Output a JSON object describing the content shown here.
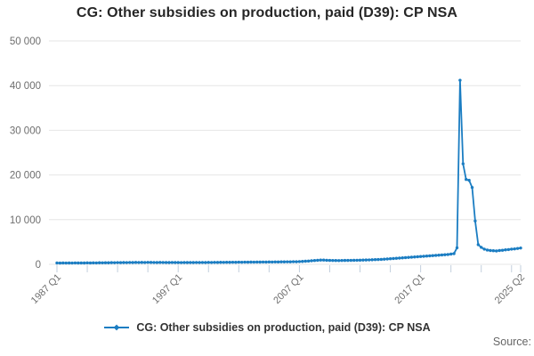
{
  "page": {
    "title": "CG: Other subsidies on production, paid (D39): CP NSA",
    "source_label": "Source:"
  },
  "legend": {
    "label": "CG: Other subsidies on production, paid (D39): CP NSA"
  },
  "colors": {
    "line": "#1b7dc2",
    "grid": "#e6e6e6",
    "tick": "#c2cfdd",
    "axis_text": "#6e6e6e",
    "title_text": "#262626",
    "legend_text": "#333333",
    "source_text": "#666666"
  },
  "chart_data": {
    "type": "line",
    "title": "CG: Other subsidies on production, paid (D39): CP NSA",
    "frequency": "quarterly",
    "x_start": "1987 Q1",
    "x_end": "2025 Q2",
    "xlabel": "",
    "ylabel": "",
    "ylim": [
      0,
      50000
    ],
    "grid": "horizontal",
    "legend_position": "bottom",
    "marker": "diamond",
    "y_ticks": [
      {
        "value": 0,
        "label": "0"
      },
      {
        "value": 10000,
        "label": "10 000"
      },
      {
        "value": 20000,
        "label": "20 000"
      },
      {
        "value": 30000,
        "label": "30 000"
      },
      {
        "value": 40000,
        "label": "40 000"
      },
      {
        "value": 50000,
        "label": "50 000"
      }
    ],
    "x_ticks": [
      {
        "index": 0,
        "label": "1987 Q1"
      },
      {
        "index": 40,
        "label": "1997 Q1"
      },
      {
        "index": 80,
        "label": "2007 Q1"
      },
      {
        "index": 120,
        "label": "2017 Q1"
      },
      {
        "index": 153,
        "label": "2025 Q2"
      }
    ],
    "x_minor_tick_step": 10,
    "series_name": "CG: Other subsidies on production, paid (D39): CP NSA",
    "values": [
      300,
      280,
      310,
      290,
      300,
      290,
      320,
      300,
      310,
      300,
      330,
      310,
      330,
      320,
      350,
      340,
      360,
      350,
      380,
      370,
      390,
      380,
      400,
      390,
      420,
      410,
      430,
      420,
      430,
      420,
      440,
      430,
      420,
      410,
      430,
      420,
      410,
      400,
      420,
      410,
      400,
      390,
      410,
      400,
      410,
      400,
      420,
      410,
      420,
      410,
      430,
      420,
      440,
      430,
      450,
      440,
      460,
      450,
      470,
      460,
      480,
      470,
      490,
      480,
      500,
      490,
      510,
      500,
      520,
      510,
      530,
      520,
      540,
      530,
      560,
      550,
      570,
      560,
      590,
      580,
      620,
      650,
      700,
      730,
      800,
      850,
      900,
      950,
      950,
      900,
      880,
      860,
      850,
      840,
      860,
      870,
      880,
      890,
      900,
      910,
      930,
      950,
      970,
      990,
      1020,
      1050,
      1080,
      1100,
      1150,
      1200,
      1250,
      1300,
      1350,
      1400,
      1450,
      1500,
      1550,
      1600,
      1650,
      1700,
      1750,
      1800,
      1850,
      1900,
      1950,
      2000,
      2050,
      2100,
      2150,
      2200,
      2300,
      2400,
      3700,
      41200,
      22500,
      19000,
      18800,
      17200,
      9700,
      4400,
      3800,
      3400,
      3200,
      3100,
      3050,
      3000,
      3100,
      3150,
      3250,
      3300,
      3400,
      3450,
      3550,
      3650
    ]
  }
}
